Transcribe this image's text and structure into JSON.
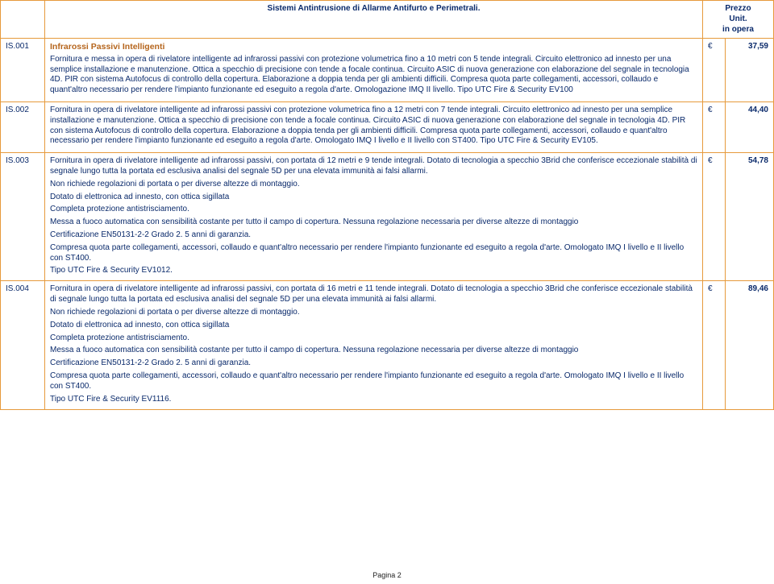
{
  "header": {
    "title": "Sistemi Antintrusione di Allarme Antifurto e Perimetrali.",
    "price_label_line1": "Prezzo",
    "price_label_line2": "Unit.",
    "price_label_line3": "in opera"
  },
  "section_heading": "Infrarossi Passivi Intelligenti",
  "currency_symbol": "€",
  "rows": [
    {
      "code": "IS.001",
      "price": "37,59",
      "paragraphs": [
        "Fornitura e messa in opera di rivelatore intelligente ad infrarossi passivi con protezione volumetrica fino a 10 metri con 5 tende integrali. Circuito elettronico ad innesto per una semplice installazione e manutenzione. Ottica a specchio di precisione con tende a focale continua. Circuito ASIC di nuova generazione con elaborazione del segnale in tecnologia 4D. PIR con sistema Autofocus di controllo della copertura. Elaborazione a doppia tenda per gli ambienti difficili. Compresa quota parte collegamenti, accessori, collaudo e quant'altro necessario per rendere l'impianto funzionante ed eseguito a regola d'arte. Omologazione IMQ II livello. Tipo UTC Fire & Security EV100"
      ]
    },
    {
      "code": "IS.002",
      "price": "44,40",
      "paragraphs": [
        "Fornitura in opera di rivelatore intelligente ad infrarossi passivi con protezione volumetrica fino a 12 metri con 7 tende integrali. Circuito elettronico ad innesto per una semplice installazione e manutenzione. Ottica a specchio di precisione con tende a focale continua. Circuito ASIC di nuova generazione con elaborazione del segnale in tecnologia 4D. PIR con sistema Autofocus di controllo della copertura. Elaborazione a doppia tenda per gli ambienti difficili. Compresa quota parte collegamenti, accessori, collaudo e quant'altro necessario per rendere l'impianto funzionante ed eseguito a regola d'arte. Omologato IMQ I livello e II livello con ST400. Tipo UTC Fire & Security EV105."
      ]
    },
    {
      "code": "IS.003",
      "price": "54,78",
      "paragraphs": [
        "Fornitura in opera di rivelatore intelligente ad infrarossi passivi, con portata di 12 metri e 9 tende integrali. Dotato di tecnologia a specchio 3Brid che conferisce eccezionale stabilità di segnale lungo tutta la portata ed esclusiva analisi del segnale 5D per una elevata immunità ai falsi allarmi.",
        "Non richiede regolazioni di portata o per diverse altezze di montaggio.",
        "Dotato di elettronica ad innesto, con ottica sigillata",
        "Completa protezione antistrisciamento.",
        "Messa a fuoco automatica con sensibilità costante per tutto il campo di copertura. Nessuna regolazione necessaria per diverse altezze di montaggio",
        "Certificazione EN50131-2-2 Grado 2. 5 anni di garanzia.",
        "Compresa quota parte collegamenti, accessori, collaudo e quant'altro necessario per rendere l'impianto funzionante ed eseguito a regola d'arte. Omologato IMQ I livello e II livello con ST400."
      ],
      "cut_line": "Tipo UTC Fire & Security EV1012."
    },
    {
      "code": "IS.004",
      "price": "89,46",
      "paragraphs": [
        "Fornitura in opera di rivelatore intelligente ad infrarossi passivi, con portata di 16 metri e 11 tende integrali. Dotato di tecnologia a specchio 3Brid che conferisce eccezionale stabilità di segnale lungo tutta la portata ed esclusiva analisi del segnale 5D per una elevata immunità ai falsi allarmi.",
        "Non richiede regolazioni di portata o per diverse altezze di montaggio.",
        "Dotato di elettronica ad innesto, con ottica sigillata",
        "Completa protezione antistrisciamento.",
        "Messa a fuoco automatica con sensibilità costante per tutto il campo di copertura. Nessuna regolazione necessaria per diverse altezze di montaggio",
        "Certificazione EN50131-2-2 Grado 2. 5 anni di garanzia.",
        "Compresa quota parte collegamenti, accessori, collaudo e quant'altro necessario per rendere l'impianto funzionante ed eseguito a regola d'arte. Omologato IMQ I livello e II livello con ST400."
      ],
      "cut_line": "Tipo UTC Fire & Security EV1116."
    }
  ],
  "footer": "Pagina 2"
}
